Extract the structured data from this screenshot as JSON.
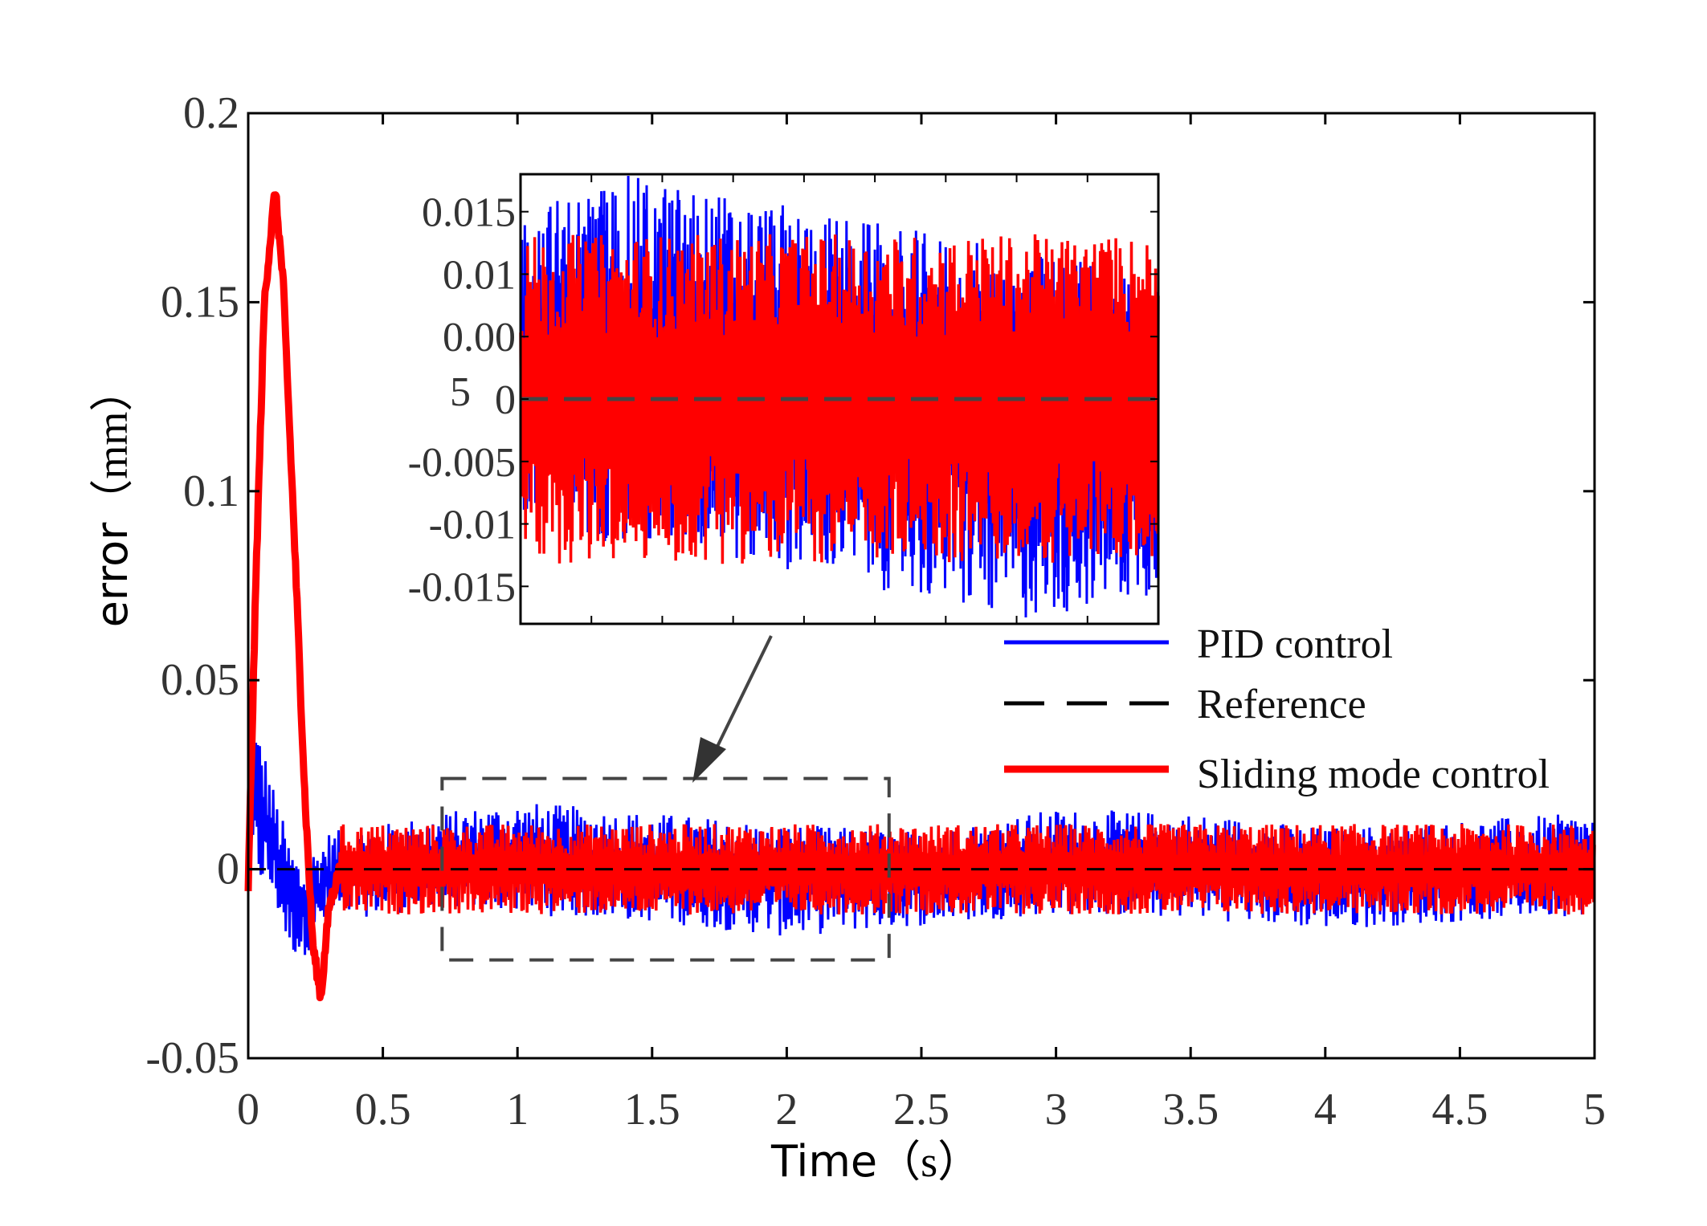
{
  "chart_data": {
    "type": "line",
    "title": "",
    "xlabel_main": "Time",
    "xlabel_unit": "（s）",
    "ylabel_main": "error",
    "ylabel_unit": "（mm）",
    "xlim": [
      0,
      5
    ],
    "ylim": [
      -0.05,
      0.2
    ],
    "xticks": [
      0,
      0.5,
      1,
      1.5,
      2,
      2.5,
      3,
      3.5,
      4,
      4.5,
      5
    ],
    "xtick_labels": [
      "0",
      "0.5",
      "1",
      "1.5",
      "2",
      "2.5",
      "3",
      "3.5",
      "4",
      "4.5",
      "5"
    ],
    "yticks": [
      -0.05,
      0,
      0.05,
      0.1,
      0.15,
      0.2
    ],
    "ytick_labels": [
      "-0.05",
      "0",
      "0.05",
      "0.1",
      "0.15",
      "0.2"
    ],
    "grid": false,
    "legend_position": "right",
    "series": [
      {
        "name": "PID control",
        "color": "#0000ff",
        "style": "solid",
        "description": "Initial positive spike to ~0.045, dips to ~-0.022, then noisy oscillation around zero with amplitude ~0.01-0.015",
        "envelope": [
          {
            "x": 0.0,
            "upper": 0.045,
            "lower": -0.005
          },
          {
            "x": 0.05,
            "upper": 0.035,
            "lower": -0.005
          },
          {
            "x": 0.1,
            "upper": 0.02,
            "lower": -0.01
          },
          {
            "x": 0.15,
            "upper": 0.008,
            "lower": -0.022
          },
          {
            "x": 0.2,
            "upper": 0.002,
            "lower": -0.024
          },
          {
            "x": 0.3,
            "upper": 0.01,
            "lower": -0.014
          },
          {
            "x": 0.5,
            "upper": 0.012,
            "lower": -0.012
          },
          {
            "x": 0.8,
            "upper": 0.016,
            "lower": -0.01
          },
          {
            "x": 1.0,
            "upper": 0.018,
            "lower": -0.012
          },
          {
            "x": 1.5,
            "upper": 0.015,
            "lower": -0.014
          },
          {
            "x": 2.0,
            "upper": 0.012,
            "lower": -0.018
          },
          {
            "x": 2.5,
            "upper": 0.01,
            "lower": -0.015
          },
          {
            "x": 3.0,
            "upper": 0.016,
            "lower": -0.012
          },
          {
            "x": 3.5,
            "upper": 0.015,
            "lower": -0.013
          },
          {
            "x": 4.0,
            "upper": 0.011,
            "lower": -0.016
          },
          {
            "x": 4.5,
            "upper": 0.013,
            "lower": -0.014
          },
          {
            "x": 5.0,
            "upper": 0.015,
            "lower": -0.012
          }
        ]
      },
      {
        "name": "Reference",
        "color": "#000000",
        "style": "dashed",
        "x": [
          0,
          5
        ],
        "values": [
          0,
          0
        ]
      },
      {
        "name": "Sliding mode control",
        "color": "#ff0000",
        "style": "solid",
        "description": "Large overshoot peak ~0.18 at t≈0.1s, undershoot to ~-0.034 at t≈0.27s, then noisy oscillation around zero with amplitude ~0.012",
        "peak": {
          "x": 0.1,
          "y": 0.18
        },
        "trough": {
          "x": 0.27,
          "y": -0.034
        },
        "transient": [
          {
            "x": 0.0,
            "y": -0.005
          },
          {
            "x": 0.03,
            "y": 0.08
          },
          {
            "x": 0.06,
            "y": 0.15
          },
          {
            "x": 0.1,
            "y": 0.18
          },
          {
            "x": 0.13,
            "y": 0.155
          },
          {
            "x": 0.17,
            "y": 0.09
          },
          {
            "x": 0.21,
            "y": 0.02
          },
          {
            "x": 0.24,
            "y": -0.02
          },
          {
            "x": 0.27,
            "y": -0.034
          },
          {
            "x": 0.3,
            "y": -0.01
          },
          {
            "x": 0.34,
            "y": 0.0
          }
        ],
        "noise_amplitude": 0.012
      }
    ],
    "zoom_box": {
      "x_range": [
        0.72,
        2.38
      ],
      "y_range": [
        -0.024,
        0.024
      ]
    },
    "inset": {
      "x_range": [
        0.72,
        2.38
      ],
      "ylim": [
        -0.018,
        0.018
      ],
      "yticks": [
        -0.015,
        -0.01,
        -0.005,
        0,
        0.005,
        0.01,
        0.015
      ],
      "ytick_labels": [
        "-0.015",
        "-0.01",
        "-0.005",
        "0",
        "0.00",
        "0.01",
        "0.015"
      ],
      "overlap_label_5": "5"
    }
  }
}
